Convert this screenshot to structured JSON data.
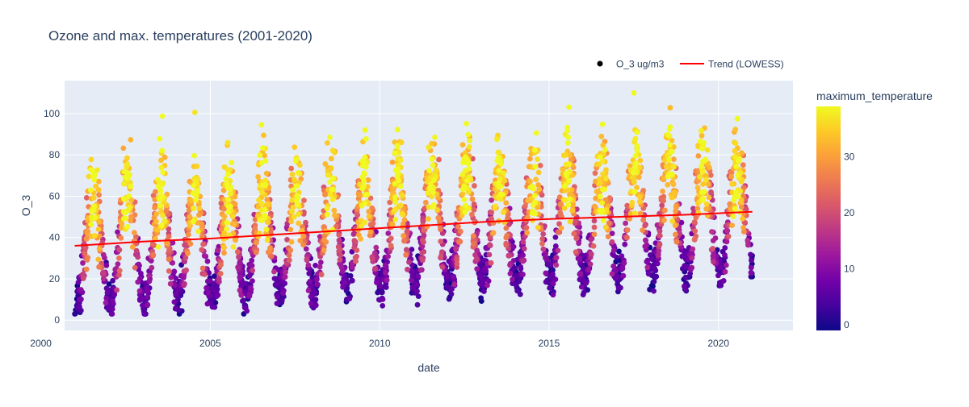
{
  "chart_data": {
    "type": "scatter",
    "title": "Ozone and max. temperatures (2001-2020)",
    "xlabel": "date",
    "ylabel": "O_3",
    "xlim": [
      2000.7,
      2022.2
    ],
    "ylim": [
      -5,
      116
    ],
    "x_ticks": [
      2000,
      2005,
      2010,
      2015,
      2020
    ],
    "y_ticks": [
      0,
      20,
      40,
      60,
      80,
      100
    ],
    "grid": true,
    "legend_position": "top-right",
    "legend": [
      {
        "label": "O_3 ug/m3",
        "symbol": "marker",
        "color": "#000000"
      },
      {
        "label": "Trend (LOWESS)",
        "symbol": "line",
        "color": "#ff0000"
      }
    ],
    "colorbar": {
      "title": "maximum_temperature",
      "range": [
        -1,
        39
      ],
      "ticks": [
        0,
        10,
        20,
        30
      ],
      "colorscale": [
        "#0d0887",
        "#46039f",
        "#7201a8",
        "#9c179e",
        "#bd3786",
        "#d8576b",
        "#ed7953",
        "#fb9f3a",
        "#fdca26",
        "#f0f921"
      ]
    },
    "scatter_series": {
      "name": "O_3 ug/m3",
      "x_start": 2001.0,
      "x_end": 2021.0,
      "points_per_year": 160,
      "seasonal_pattern": {
        "winter_o3_range": [
          4,
          40
        ],
        "summer_o3_range": [
          40,
          110
        ],
        "winter_temperature": 3,
        "summer_temperature": 37
      }
    },
    "trend_series": {
      "name": "Trend (LOWESS)",
      "color": "#ff0000",
      "x": [
        2001.0,
        2003.0,
        2005.0,
        2007.0,
        2009.0,
        2011.0,
        2013.0,
        2015.0,
        2017.0,
        2019.0,
        2021.0
      ],
      "y": [
        36.0,
        38.0,
        39.5,
        41.5,
        43.5,
        45.5,
        47.5,
        49.0,
        50.0,
        51.0,
        52.5
      ]
    }
  }
}
